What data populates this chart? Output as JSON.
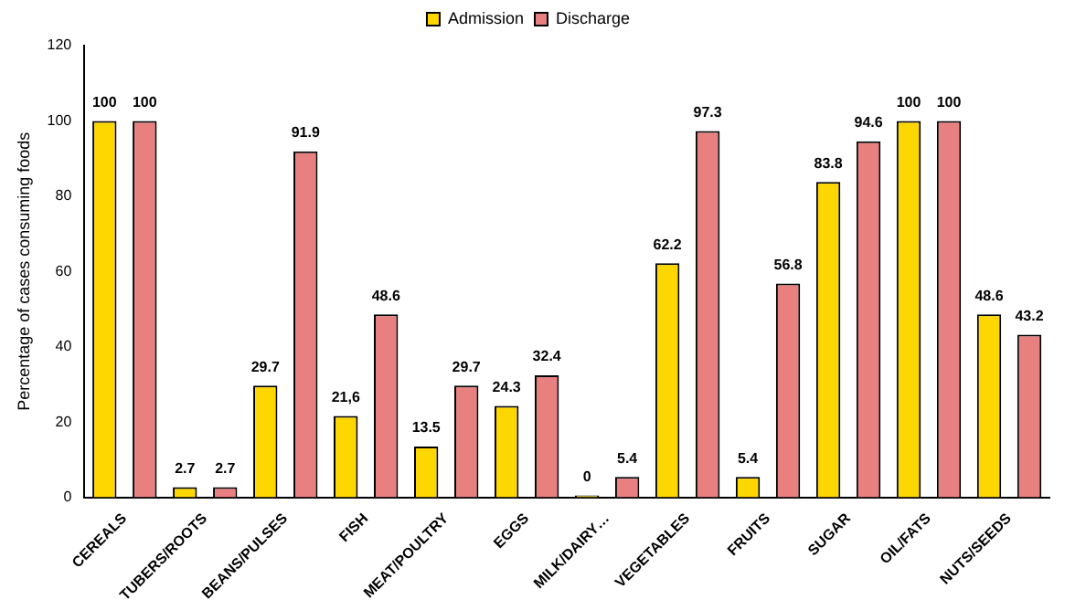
{
  "chart_data": {
    "type": "bar",
    "ylabel": "Percentage of cases consuming foods",
    "categories": [
      "CEREALS",
      "TUBERS/ROOTS",
      "BEANS/PULSES",
      "FISH",
      "MEAT/POULTRY",
      "EGGS",
      "MILK/DAIRY…",
      "VEGETABLES",
      "FRUITS",
      "SUGAR",
      "OIL/FATS",
      "NUTS/SEEDS"
    ],
    "series": [
      {
        "name": "Admission",
        "color": "#ffd700",
        "values": [
          100,
          2.7,
          29.7,
          21.6,
          13.5,
          24.3,
          0,
          62.2,
          5.4,
          83.8,
          100,
          48.6
        ],
        "value_labels": [
          "100",
          "2.7",
          "29.7",
          "21,6",
          "13.5",
          "24.3",
          "0",
          "62.2",
          "5.4",
          "83.8",
          "100",
          "48.6"
        ]
      },
      {
        "name": "Discharge",
        "color": "#e98080",
        "values": [
          100,
          2.7,
          91.9,
          48.6,
          29.7,
          32.4,
          5.4,
          97.3,
          56.8,
          94.6,
          100,
          43.2
        ],
        "value_labels": [
          "100",
          "2.7",
          "91.9",
          "48.6",
          "29.7",
          "32.4",
          "5.4",
          "97.3",
          "56.8",
          "94.6",
          "100",
          "43.2"
        ]
      }
    ],
    "ylim": [
      0,
      120
    ],
    "yticks": [
      0,
      20,
      40,
      60,
      80,
      100,
      120
    ],
    "grid": false,
    "legend": "top"
  }
}
